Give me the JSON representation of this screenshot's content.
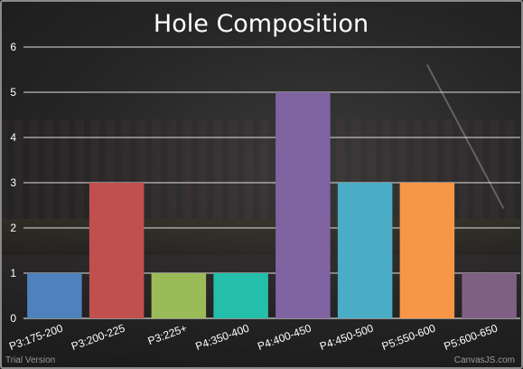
{
  "chart_data": {
    "type": "bar",
    "title": "Hole Composition",
    "categories": [
      "P3:175-200",
      "P3:200-225",
      "P3:225+",
      "P4:350-400",
      "P4:400-450",
      "P4:450-500",
      "P5:550-600",
      "P5:600-650"
    ],
    "values": [
      1,
      3,
      1,
      1,
      5,
      3,
      3,
      1
    ],
    "colors": [
      "#4f81bc",
      "#c0504e",
      "#9bbb58",
      "#23bfaa",
      "#8064a1",
      "#4aacc5",
      "#f79647",
      "#7f6084"
    ],
    "ylim": [
      0,
      6
    ],
    "yticks": [
      0,
      1,
      2,
      3,
      4,
      5,
      6
    ],
    "grid": true,
    "legend": "none"
  },
  "footer": {
    "left_text": "Trial Version",
    "right_text": "CanvasJS.com"
  }
}
